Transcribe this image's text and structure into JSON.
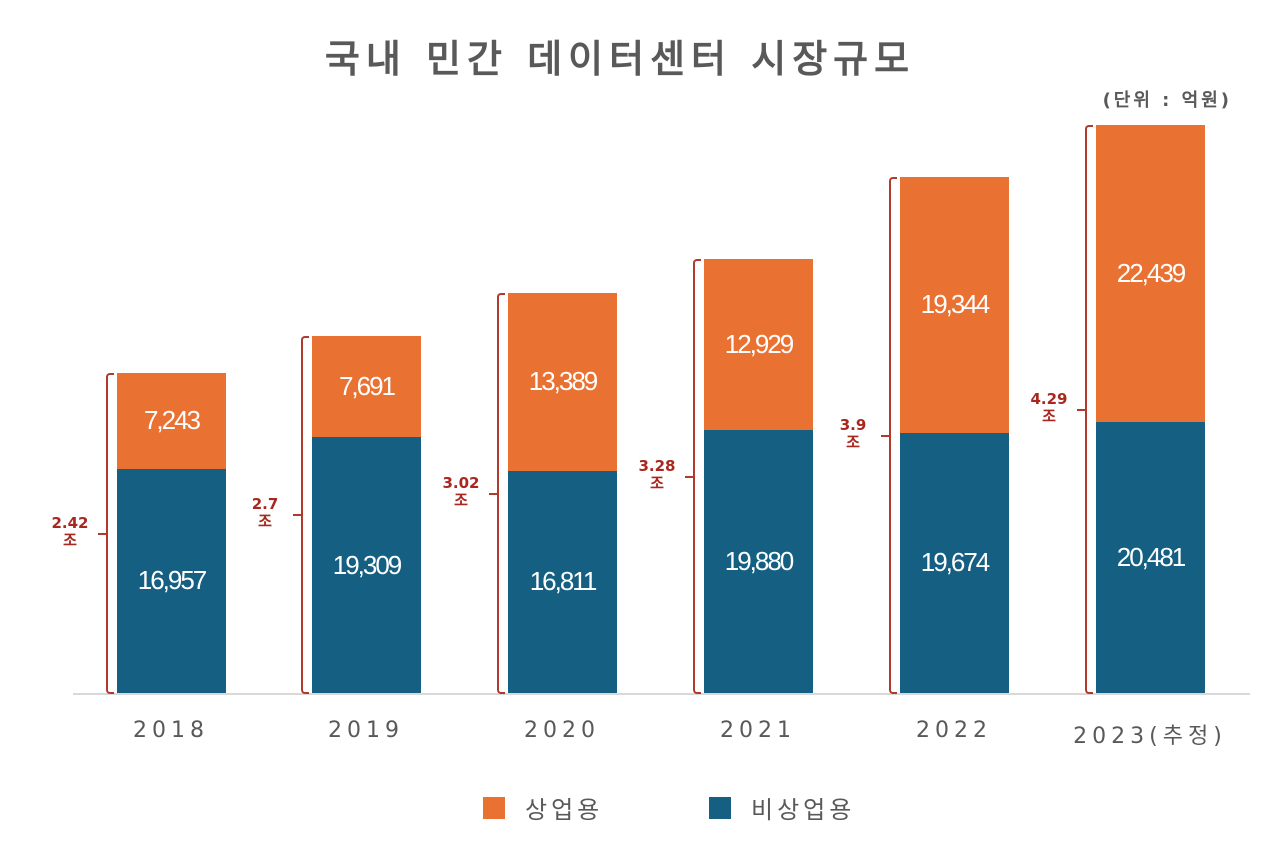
{
  "title": "국내 민간 데이터센터 시장규모",
  "unit": "(단위 : 억원)",
  "colors": {
    "commercial": "#E97132",
    "noncommercial": "#156082",
    "bracket": "#B03A2E",
    "total_text": "#A8281F"
  },
  "legend": [
    {
      "label": "상업용",
      "color": "#E97132"
    },
    {
      "label": "비상업용",
      "color": "#156082"
    }
  ],
  "bars": [
    {
      "year": "2018",
      "commercial": "7,243",
      "noncommercial": "16,957",
      "total": "2.42",
      "total_unit": "조"
    },
    {
      "year": "2019",
      "commercial": "7,691",
      "noncommercial": "19,309",
      "total": "2.7",
      "total_unit": "조"
    },
    {
      "year": "2020",
      "commercial": "13,389",
      "noncommercial": "16,811",
      "total": "3.02",
      "total_unit": "조"
    },
    {
      "year": "2021",
      "commercial": "12,929",
      "noncommercial": "19,880",
      "total": "3.28",
      "total_unit": "조"
    },
    {
      "year": "2022",
      "commercial": "19,344",
      "noncommercial": "19,674",
      "total": "3.9",
      "total_unit": "조"
    },
    {
      "year": "2023(추정)",
      "commercial": "22,439",
      "noncommercial": "20,481",
      "total": "4.29",
      "total_unit": "조"
    }
  ],
  "chart_data": {
    "type": "bar",
    "stacked": true,
    "title": "국내 민간 데이터센터 시장규모",
    "subtitle": "(단위 : 억원)",
    "xlabel": "",
    "ylabel": "",
    "categories": [
      "2018",
      "2019",
      "2020",
      "2021",
      "2022",
      "2023(추정)"
    ],
    "series": [
      {
        "name": "비상업용",
        "color": "#156082",
        "values": [
          16957,
          19309,
          16811,
          19880,
          19674,
          20481
        ]
      },
      {
        "name": "상업용",
        "color": "#E97132",
        "values": [
          7243,
          7691,
          13389,
          12929,
          19344,
          22439
        ]
      }
    ],
    "annotations": [
      {
        "category": "2018",
        "text": "2.42 조"
      },
      {
        "category": "2019",
        "text": "2.7 조"
      },
      {
        "category": "2020",
        "text": "3.02 조"
      },
      {
        "category": "2021",
        "text": "3.28 조"
      },
      {
        "category": "2022",
        "text": "3.9 조"
      },
      {
        "category": "2023(추정)",
        "text": "4.29 조"
      }
    ],
    "legend_position": "bottom",
    "grid": false,
    "ylim": [
      0,
      45000
    ]
  }
}
